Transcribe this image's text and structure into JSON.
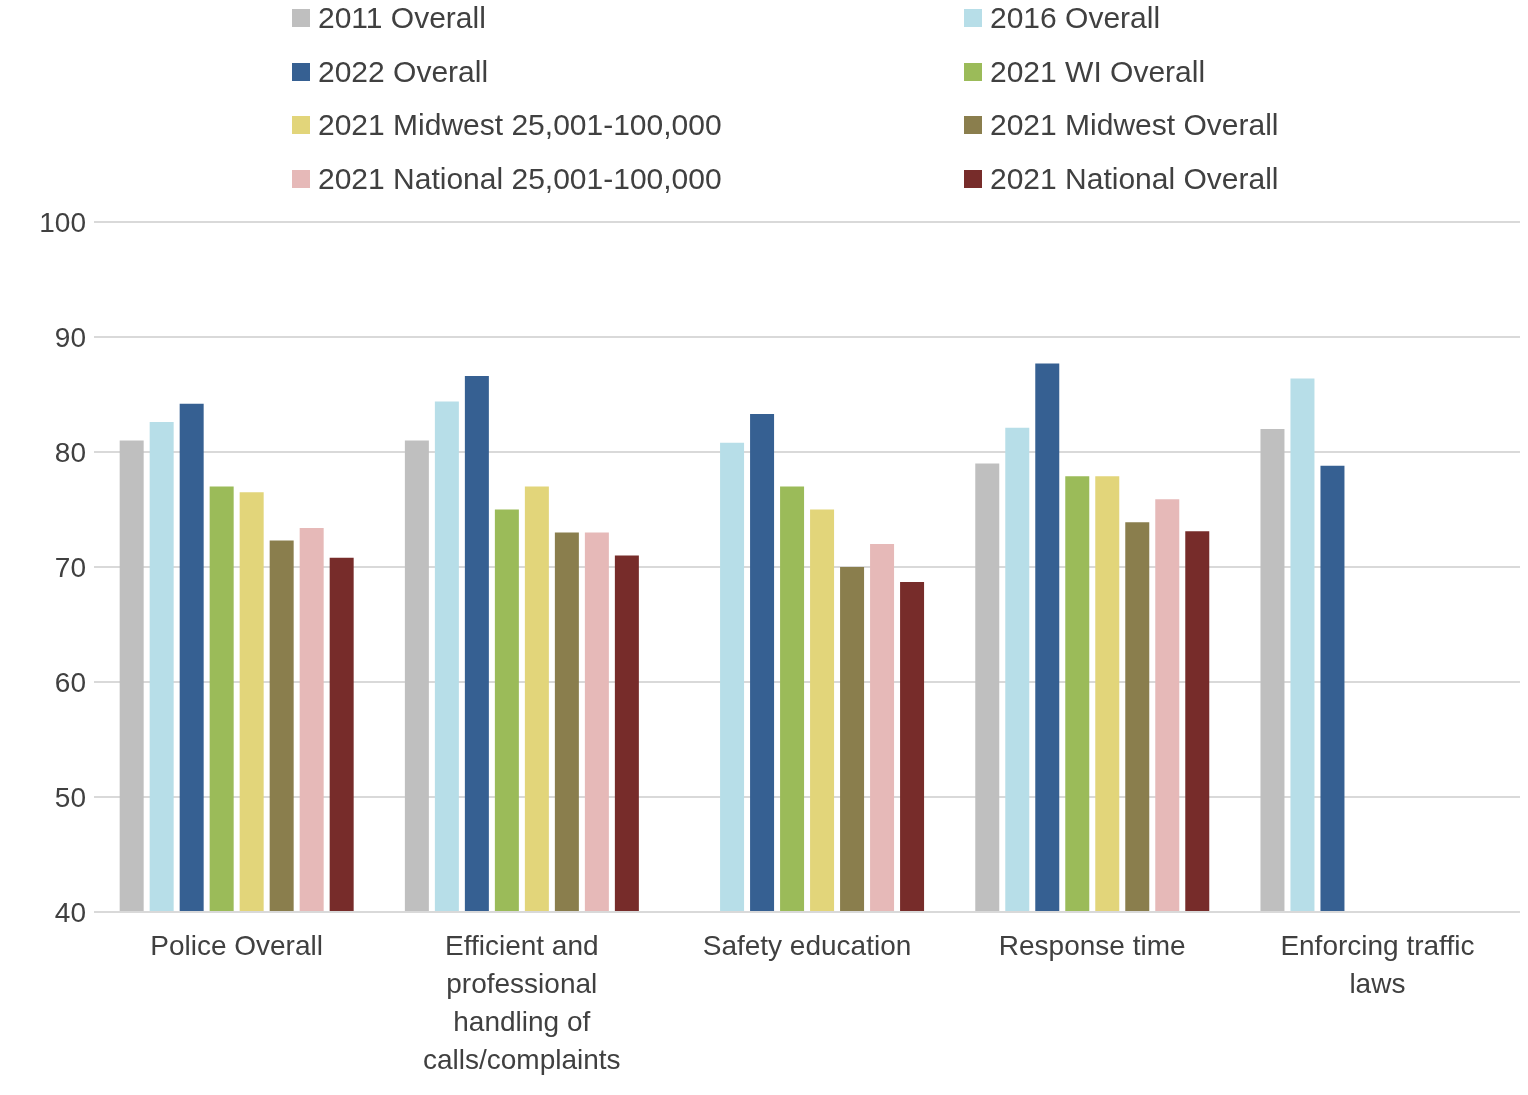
{
  "chart_data": {
    "type": "bar",
    "categories": [
      "Police Overall",
      "Efficient and professional handling of calls/complaints",
      "Safety education",
      "Response time",
      "Enforcing traffic laws"
    ],
    "series": [
      {
        "name": "2011 Overall",
        "color": "#bfbfbf",
        "values": [
          81,
          81,
          null,
          79,
          82
        ]
      },
      {
        "name": "2016 Overall",
        "color": "#b7dee8",
        "values": [
          82.6,
          84.4,
          80.8,
          82.1,
          86.4
        ]
      },
      {
        "name": "2022 Overall",
        "color": "#366092",
        "values": [
          84.2,
          86.6,
          83.3,
          87.7,
          78.8
        ]
      },
      {
        "name": "2021 WI Overall",
        "color": "#9bbb59",
        "values": [
          77,
          75,
          77,
          77.9,
          null
        ]
      },
      {
        "name": "2021 Midwest 25,001-100,000",
        "color": "#e2d57a",
        "values": [
          76.5,
          77,
          75,
          77.9,
          null
        ]
      },
      {
        "name": "2021 Midwest Overall",
        "color": "#8a7e4d",
        "values": [
          72.3,
          73,
          70,
          73.9,
          null
        ]
      },
      {
        "name": "2021 National 25,001-100,000",
        "color": "#e6b9b8",
        "values": [
          73.4,
          73,
          72,
          75.9,
          null
        ]
      },
      {
        "name": "2021 National Overall",
        "color": "#772c2a",
        "values": [
          70.8,
          71,
          68.7,
          73.1,
          null
        ]
      }
    ],
    "ylim": [
      40,
      100
    ],
    "yticks": [
      40,
      50,
      60,
      70,
      80,
      90,
      100
    ],
    "grid": "y",
    "legend": "top"
  }
}
